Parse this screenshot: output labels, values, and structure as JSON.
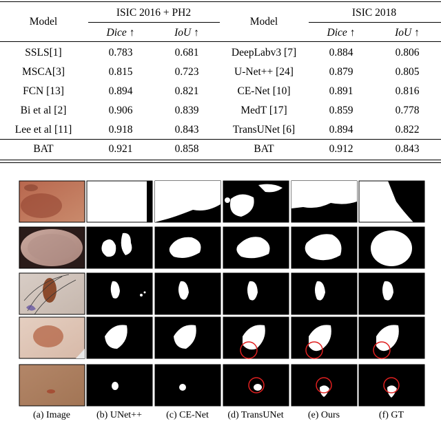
{
  "table": {
    "left_group": "ISIC 2016 + PH2",
    "right_group": "ISIC 2018",
    "model_header": "Model",
    "dice_header": "Dice ↑",
    "iou_header": "IoU ↑",
    "left_rows": [
      {
        "model": "SSLS[1]",
        "dice": "0.783",
        "iou": "0.681"
      },
      {
        "model": "MSCA[3]",
        "dice": "0.815",
        "iou": "0.723"
      },
      {
        "model": "FCN [13]",
        "dice": "0.894",
        "iou": "0.821"
      },
      {
        "model": "Bi et al [2]",
        "dice": "0.906",
        "iou": "0.839"
      },
      {
        "model": "Lee et al [11]",
        "dice": "0.918",
        "iou": "0.843"
      }
    ],
    "right_rows": [
      {
        "model": "DeepLabv3 [7]",
        "dice": "0.884",
        "iou": "0.806"
      },
      {
        "model": "U-Net++ [24]",
        "dice": "0.879",
        "iou": "0.805"
      },
      {
        "model": "CE-Net [10]",
        "dice": "0.891",
        "iou": "0.816"
      },
      {
        "model": "MedT [17]",
        "dice": "0.859",
        "iou": "0.778"
      },
      {
        "model": "TransUNet [6]",
        "dice": "0.894",
        "iou": "0.822"
      }
    ],
    "left_final": {
      "model": "BAT",
      "dice": "0.921",
      "iou": "0.858"
    },
    "right_final": {
      "model": "BAT",
      "dice": "0.912",
      "iou": "0.843"
    }
  },
  "figure": {
    "captions": [
      "(a) Image",
      "(b) UNet++",
      "(c) CE-Net",
      "(d) TransUNet",
      "(e) Ours",
      "(f) GT"
    ],
    "colors": {
      "mask_bg": "#000000",
      "mask_fg": "#ffffff",
      "highlight_circle": "#e02020"
    }
  }
}
